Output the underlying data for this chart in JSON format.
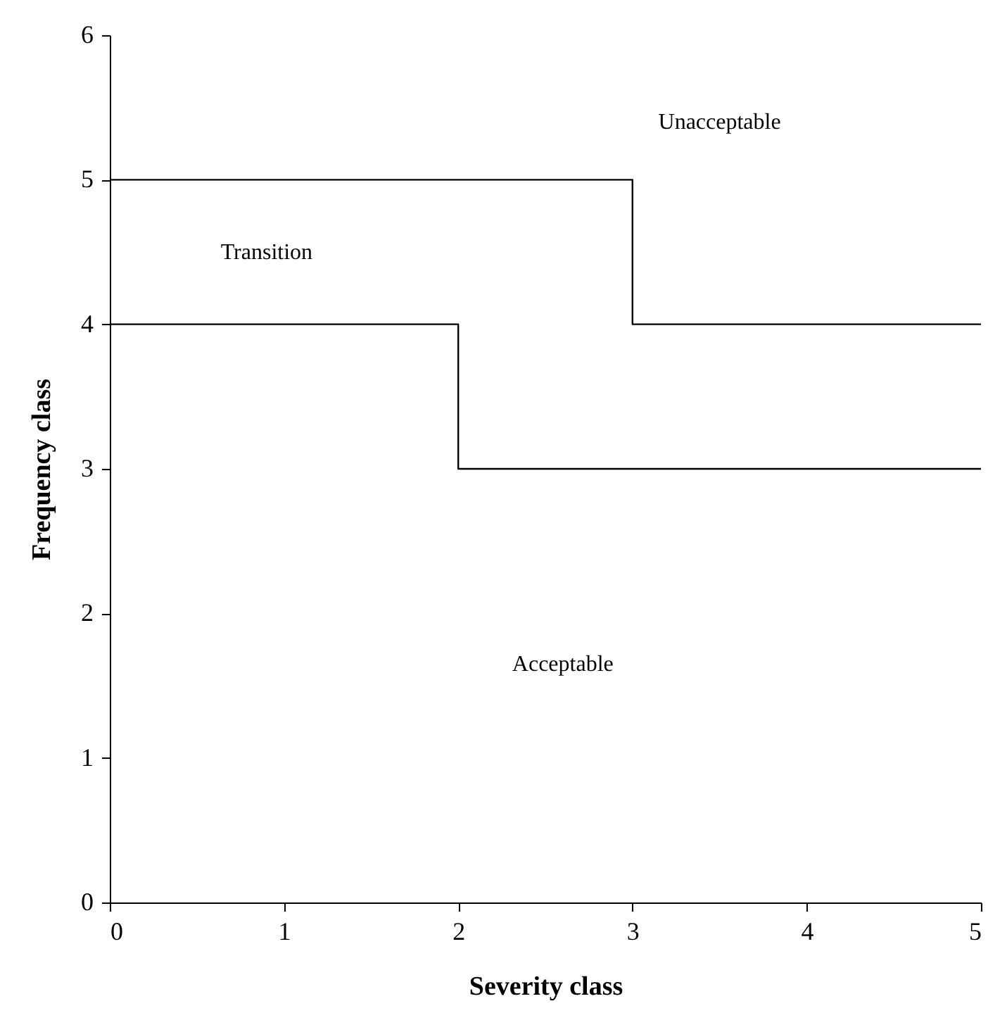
{
  "chart_data": {
    "type": "step",
    "xlabel": "Severity class",
    "ylabel": "Frequency class",
    "xlim": [
      0,
      5
    ],
    "ylim": [
      0,
      6
    ],
    "xticks": [
      0,
      1,
      2,
      3,
      4,
      5
    ],
    "yticks": [
      0,
      1,
      2,
      3,
      4,
      5,
      6
    ],
    "grid": false,
    "marker": "none",
    "line_style": "solid",
    "series": [
      {
        "x": [
          0,
          3,
          5
        ],
        "values": [
          5,
          4,
          4
        ],
        "color": "#000000"
      },
      {
        "x": [
          0,
          2,
          5
        ],
        "values": [
          4,
          3,
          3
        ],
        "color": "#000000"
      }
    ],
    "annotations": [
      "Unacceptable",
      "Transition",
      "Acceptable"
    ]
  }
}
